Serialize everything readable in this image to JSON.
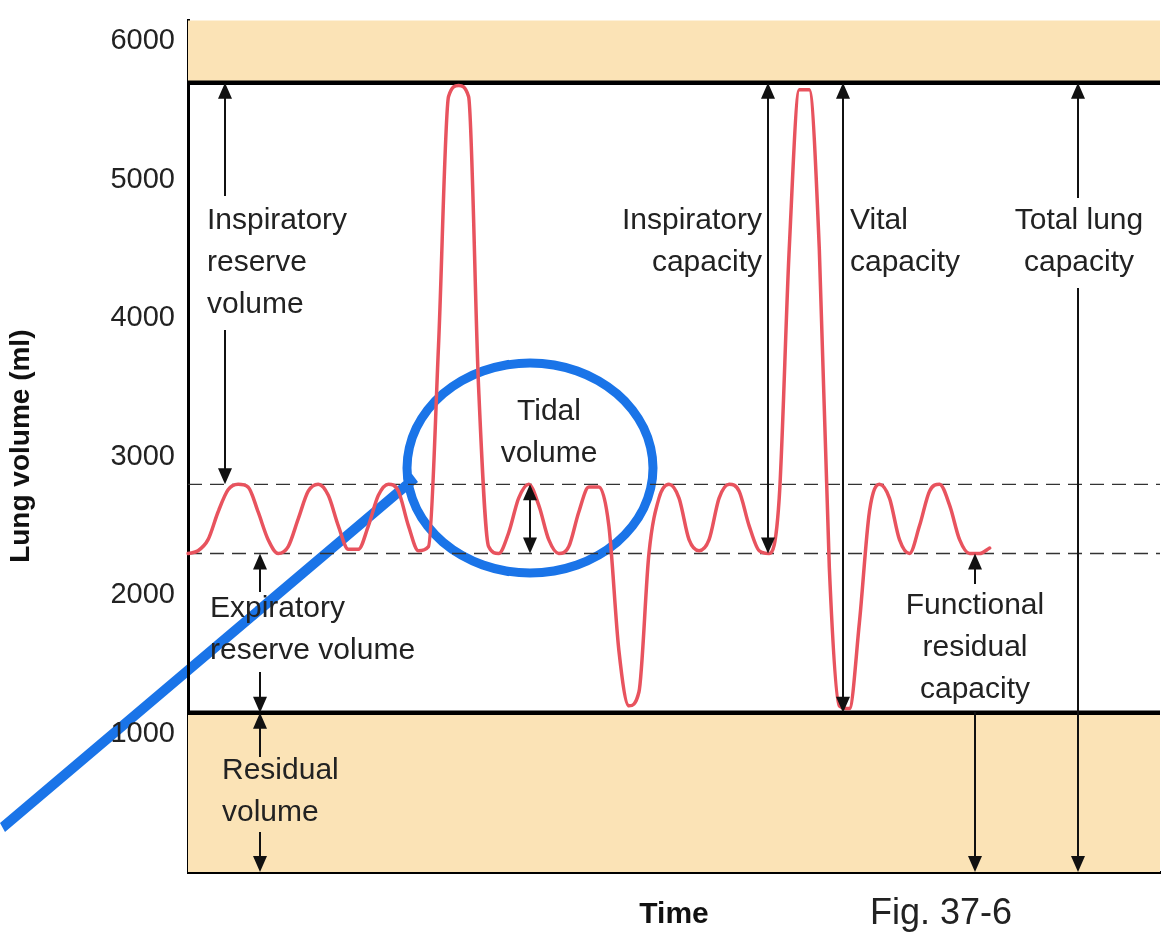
{
  "chart_data": {
    "type": "line",
    "xlabel": "Time",
    "ylabel": "Lung volume (ml)",
    "categories": [
      null,
      null,
      null,
      null,
      null,
      null,
      null,
      null,
      null,
      null,
      null,
      null,
      null,
      null,
      null,
      null,
      null,
      null,
      null,
      null,
      null,
      null,
      null,
      null,
      null,
      null,
      null,
      null,
      null,
      null,
      null,
      null,
      null,
      null,
      null,
      null,
      null,
      null,
      null,
      null,
      null,
      null,
      null,
      null,
      null,
      null,
      null,
      null,
      null,
      null,
      null,
      null,
      null,
      null,
      null,
      null,
      null,
      null,
      null,
      null,
      null,
      null,
      null,
      null,
      null,
      null,
      null,
      null,
      null,
      null,
      null,
      null,
      null,
      null,
      null,
      null,
      null,
      null,
      null,
      null,
      null,
      null,
      null,
      null,
      null,
      null,
      null,
      null,
      null,
      null,
      null,
      null,
      null,
      null,
      null,
      null,
      null,
      null
    ],
    "series": [
      {
        "color": "#e8535e",
        "values": [
          2300,
          2320,
          2400,
          2600,
          2760,
          2800,
          2780,
          2600,
          2400,
          2300,
          2350,
          2550,
          2750,
          2800,
          2720,
          2500,
          2330,
          2330,
          2500,
          2720,
          2800,
          2750,
          2500,
          2320,
          2350,
          3800,
          5600,
          5680,
          5600,
          3500,
          2350,
          2300,
          2450,
          2700,
          2800,
          2650,
          2400,
          2300,
          2350,
          2600,
          2780,
          2780,
          2500,
          1600,
          1200,
          1300,
          2300,
          2700,
          2800,
          2700,
          2400,
          2320,
          2400,
          2700,
          2800,
          2750,
          2500,
          2320,
          2300,
          2700,
          4500,
          5650,
          5650,
          4500,
          2200,
          1200,
          1180,
          1800,
          2600,
          2800,
          2700,
          2400,
          2300,
          2500,
          2750,
          2800,
          2650,
          2400,
          2300,
          2300,
          2340,
          null,
          null,
          null,
          null,
          null,
          null,
          null,
          null,
          null,
          null,
          null,
          null,
          null,
          null,
          null,
          null,
          null
        ]
      }
    ],
    "ylim": [
      0,
      6150
    ],
    "yticks": [
      1000,
      2000,
      3000,
      4000,
      5000,
      6000
    ],
    "tick_labels": "y",
    "grid": false,
    "legend": false,
    "marker": "none",
    "line_style": "solid",
    "bands": [
      {
        "axis": "y",
        "from": 5700,
        "to": 6150,
        "color": "#fbe3b6"
      },
      {
        "axis": "y",
        "from": 0,
        "to": 1150,
        "color": "#fbe3b6"
      }
    ],
    "ref_lines": [
      {
        "axis": "y",
        "value": 5700,
        "color": "#000000",
        "line_style": "solid"
      },
      {
        "axis": "y",
        "value": 2800,
        "color": "#333333",
        "line_style": "dashed"
      },
      {
        "axis": "y",
        "value": 2300,
        "color": "#333333",
        "line_style": "dashed"
      },
      {
        "axis": "y",
        "value": 1150,
        "color": "#000000",
        "line_style": "solid"
      }
    ],
    "annotations": [
      "Inspiratory reserve volume",
      "Tidal volume",
      "Inspiratory capacity",
      "Vital capacity",
      "Total lung capacity",
      "Expiratory reserve volume",
      "Functional residual capacity",
      "Residual volume",
      "Fig. 37-6"
    ]
  }
}
